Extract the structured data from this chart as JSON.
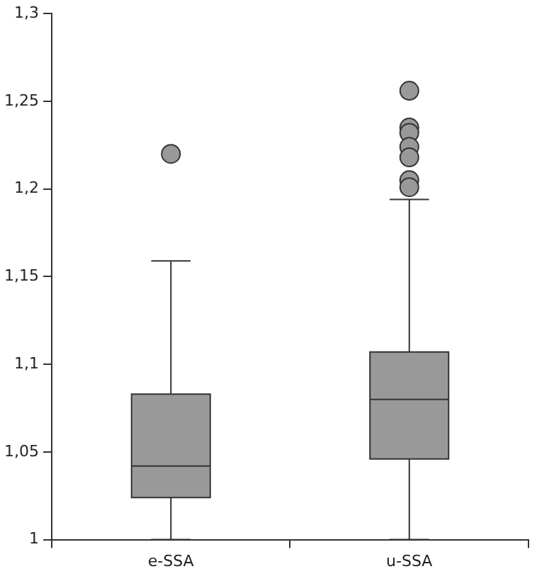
{
  "chart_data": {
    "type": "box",
    "categories": [
      "e-SSA",
      "u-SSA"
    ],
    "series": [
      {
        "color": "#999999",
        "boxes": [
          {
            "low": 1.0,
            "q1": 1.024,
            "median": 1.042,
            "q3": 1.083,
            "high": 1.159,
            "outliers": [
              1.22
            ]
          },
          {
            "low": 1.0,
            "q1": 1.046,
            "median": 1.08,
            "q3": 1.107,
            "high": 1.194,
            "outliers": [
              1.256,
              1.235,
              1.232,
              1.224,
              1.218,
              1.205,
              1.201
            ]
          }
        ]
      }
    ],
    "ylim": [
      1,
      1.3
    ],
    "yticks": [
      1,
      {
        "value": 1.05,
        "label": "1,05"
      },
      {
        "value": 1.1,
        "label": "1,1"
      },
      {
        "value": 1.15,
        "label": "1,15"
      },
      {
        "value": 1.2,
        "label": "1,2"
      },
      {
        "value": 1.25,
        "label": "1,25"
      },
      {
        "value": 1.3,
        "label": "1,3"
      }
    ],
    "grid": false,
    "legend": false
  }
}
